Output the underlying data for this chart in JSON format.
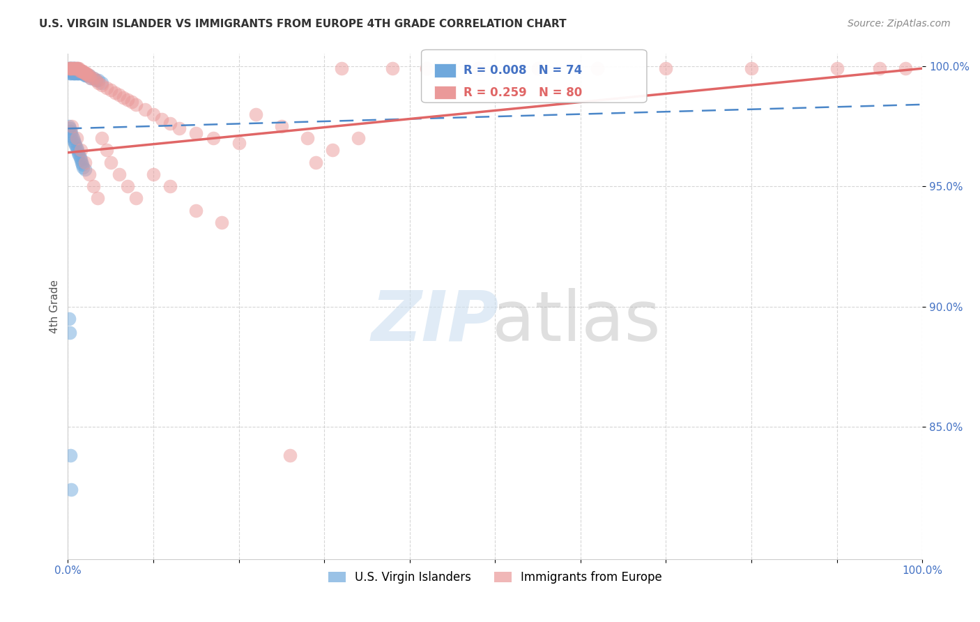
{
  "title": "U.S. VIRGIN ISLANDER VS IMMIGRANTS FROM EUROPE 4TH GRADE CORRELATION CHART",
  "source": "Source: ZipAtlas.com",
  "ylabel": "4th Grade",
  "xlim": [
    0,
    1.0
  ],
  "ylim": [
    0.795,
    1.005
  ],
  "yticks": [
    0.85,
    0.9,
    0.95,
    1.0
  ],
  "ytick_labels": [
    "85.0%",
    "90.0%",
    "95.0%",
    "100.0%"
  ],
  "xticks": [
    0.0,
    0.1,
    0.2,
    0.3,
    0.4,
    0.5,
    0.6,
    0.7,
    0.8,
    0.9,
    1.0
  ],
  "xtick_labels": [
    "0.0%",
    "",
    "",
    "",
    "",
    "",
    "",
    "",
    "",
    "",
    "100.0%"
  ],
  "legend_label1": "U.S. Virgin Islanders",
  "legend_label2": "Immigrants from Europe",
  "R1": 0.008,
  "N1": 74,
  "R2": 0.259,
  "N2": 80,
  "color1": "#6fa8dc",
  "color2": "#ea9999",
  "trendline1_color": "#4a86c8",
  "trendline2_color": "#e06666",
  "blue_x": [
    0.001,
    0.001,
    0.002,
    0.002,
    0.002,
    0.003,
    0.003,
    0.003,
    0.004,
    0.004,
    0.005,
    0.005,
    0.005,
    0.006,
    0.006,
    0.006,
    0.007,
    0.007,
    0.007,
    0.008,
    0.008,
    0.008,
    0.009,
    0.009,
    0.01,
    0.01,
    0.01,
    0.011,
    0.011,
    0.012,
    0.012,
    0.013,
    0.013,
    0.014,
    0.014,
    0.015,
    0.015,
    0.016,
    0.017,
    0.018,
    0.019,
    0.02,
    0.021,
    0.022,
    0.023,
    0.025,
    0.027,
    0.03,
    0.033,
    0.036,
    0.04,
    0.001,
    0.002,
    0.003,
    0.004,
    0.005,
    0.006,
    0.007,
    0.008,
    0.009,
    0.01,
    0.011,
    0.012,
    0.013,
    0.014,
    0.015,
    0.016,
    0.017,
    0.018,
    0.02,
    0.001,
    0.002,
    0.003,
    0.004
  ],
  "blue_y": [
    0.999,
    0.998,
    0.999,
    0.998,
    0.997,
    0.999,
    0.998,
    0.997,
    0.999,
    0.998,
    0.999,
    0.998,
    0.997,
    0.999,
    0.998,
    0.997,
    0.999,
    0.998,
    0.997,
    0.999,
    0.998,
    0.997,
    0.998,
    0.997,
    0.999,
    0.998,
    0.997,
    0.998,
    0.997,
    0.998,
    0.997,
    0.998,
    0.997,
    0.998,
    0.997,
    0.998,
    0.997,
    0.997,
    0.997,
    0.997,
    0.997,
    0.996,
    0.996,
    0.996,
    0.996,
    0.996,
    0.995,
    0.995,
    0.994,
    0.994,
    0.993,
    0.975,
    0.974,
    0.973,
    0.972,
    0.971,
    0.97,
    0.969,
    0.968,
    0.967,
    0.966,
    0.965,
    0.964,
    0.963,
    0.962,
    0.961,
    0.96,
    0.959,
    0.958,
    0.957,
    0.895,
    0.889,
    0.838,
    0.824
  ],
  "pink_x": [
    0.001,
    0.002,
    0.003,
    0.004,
    0.005,
    0.006,
    0.007,
    0.008,
    0.009,
    0.01,
    0.011,
    0.012,
    0.013,
    0.014,
    0.015,
    0.016,
    0.017,
    0.018,
    0.019,
    0.02,
    0.021,
    0.022,
    0.023,
    0.025,
    0.027,
    0.03,
    0.033,
    0.036,
    0.04,
    0.045,
    0.05,
    0.055,
    0.06,
    0.065,
    0.07,
    0.075,
    0.08,
    0.09,
    0.1,
    0.11,
    0.12,
    0.13,
    0.15,
    0.17,
    0.2,
    0.22,
    0.25,
    0.28,
    0.32,
    0.38,
    0.42,
    0.48,
    0.55,
    0.62,
    0.7,
    0.8,
    0.9,
    0.95,
    0.98,
    0.005,
    0.01,
    0.015,
    0.02,
    0.025,
    0.03,
    0.035,
    0.04,
    0.045,
    0.05,
    0.06,
    0.07,
    0.08,
    0.1,
    0.12,
    0.15,
    0.18,
    0.34,
    0.31,
    0.29,
    0.26
  ],
  "pink_y": [
    0.999,
    0.999,
    0.999,
    0.999,
    0.999,
    0.999,
    0.999,
    0.999,
    0.999,
    0.999,
    0.999,
    0.999,
    0.999,
    0.998,
    0.998,
    0.998,
    0.998,
    0.998,
    0.997,
    0.997,
    0.997,
    0.997,
    0.996,
    0.996,
    0.995,
    0.995,
    0.994,
    0.993,
    0.992,
    0.991,
    0.99,
    0.989,
    0.988,
    0.987,
    0.986,
    0.985,
    0.984,
    0.982,
    0.98,
    0.978,
    0.976,
    0.974,
    0.972,
    0.97,
    0.968,
    0.98,
    0.975,
    0.97,
    0.999,
    0.999,
    0.999,
    0.999,
    0.999,
    0.999,
    0.999,
    0.999,
    0.999,
    0.999,
    0.999,
    0.975,
    0.97,
    0.965,
    0.96,
    0.955,
    0.95,
    0.945,
    0.97,
    0.965,
    0.96,
    0.955,
    0.95,
    0.945,
    0.955,
    0.95,
    0.94,
    0.935,
    0.97,
    0.965,
    0.96,
    0.838
  ]
}
